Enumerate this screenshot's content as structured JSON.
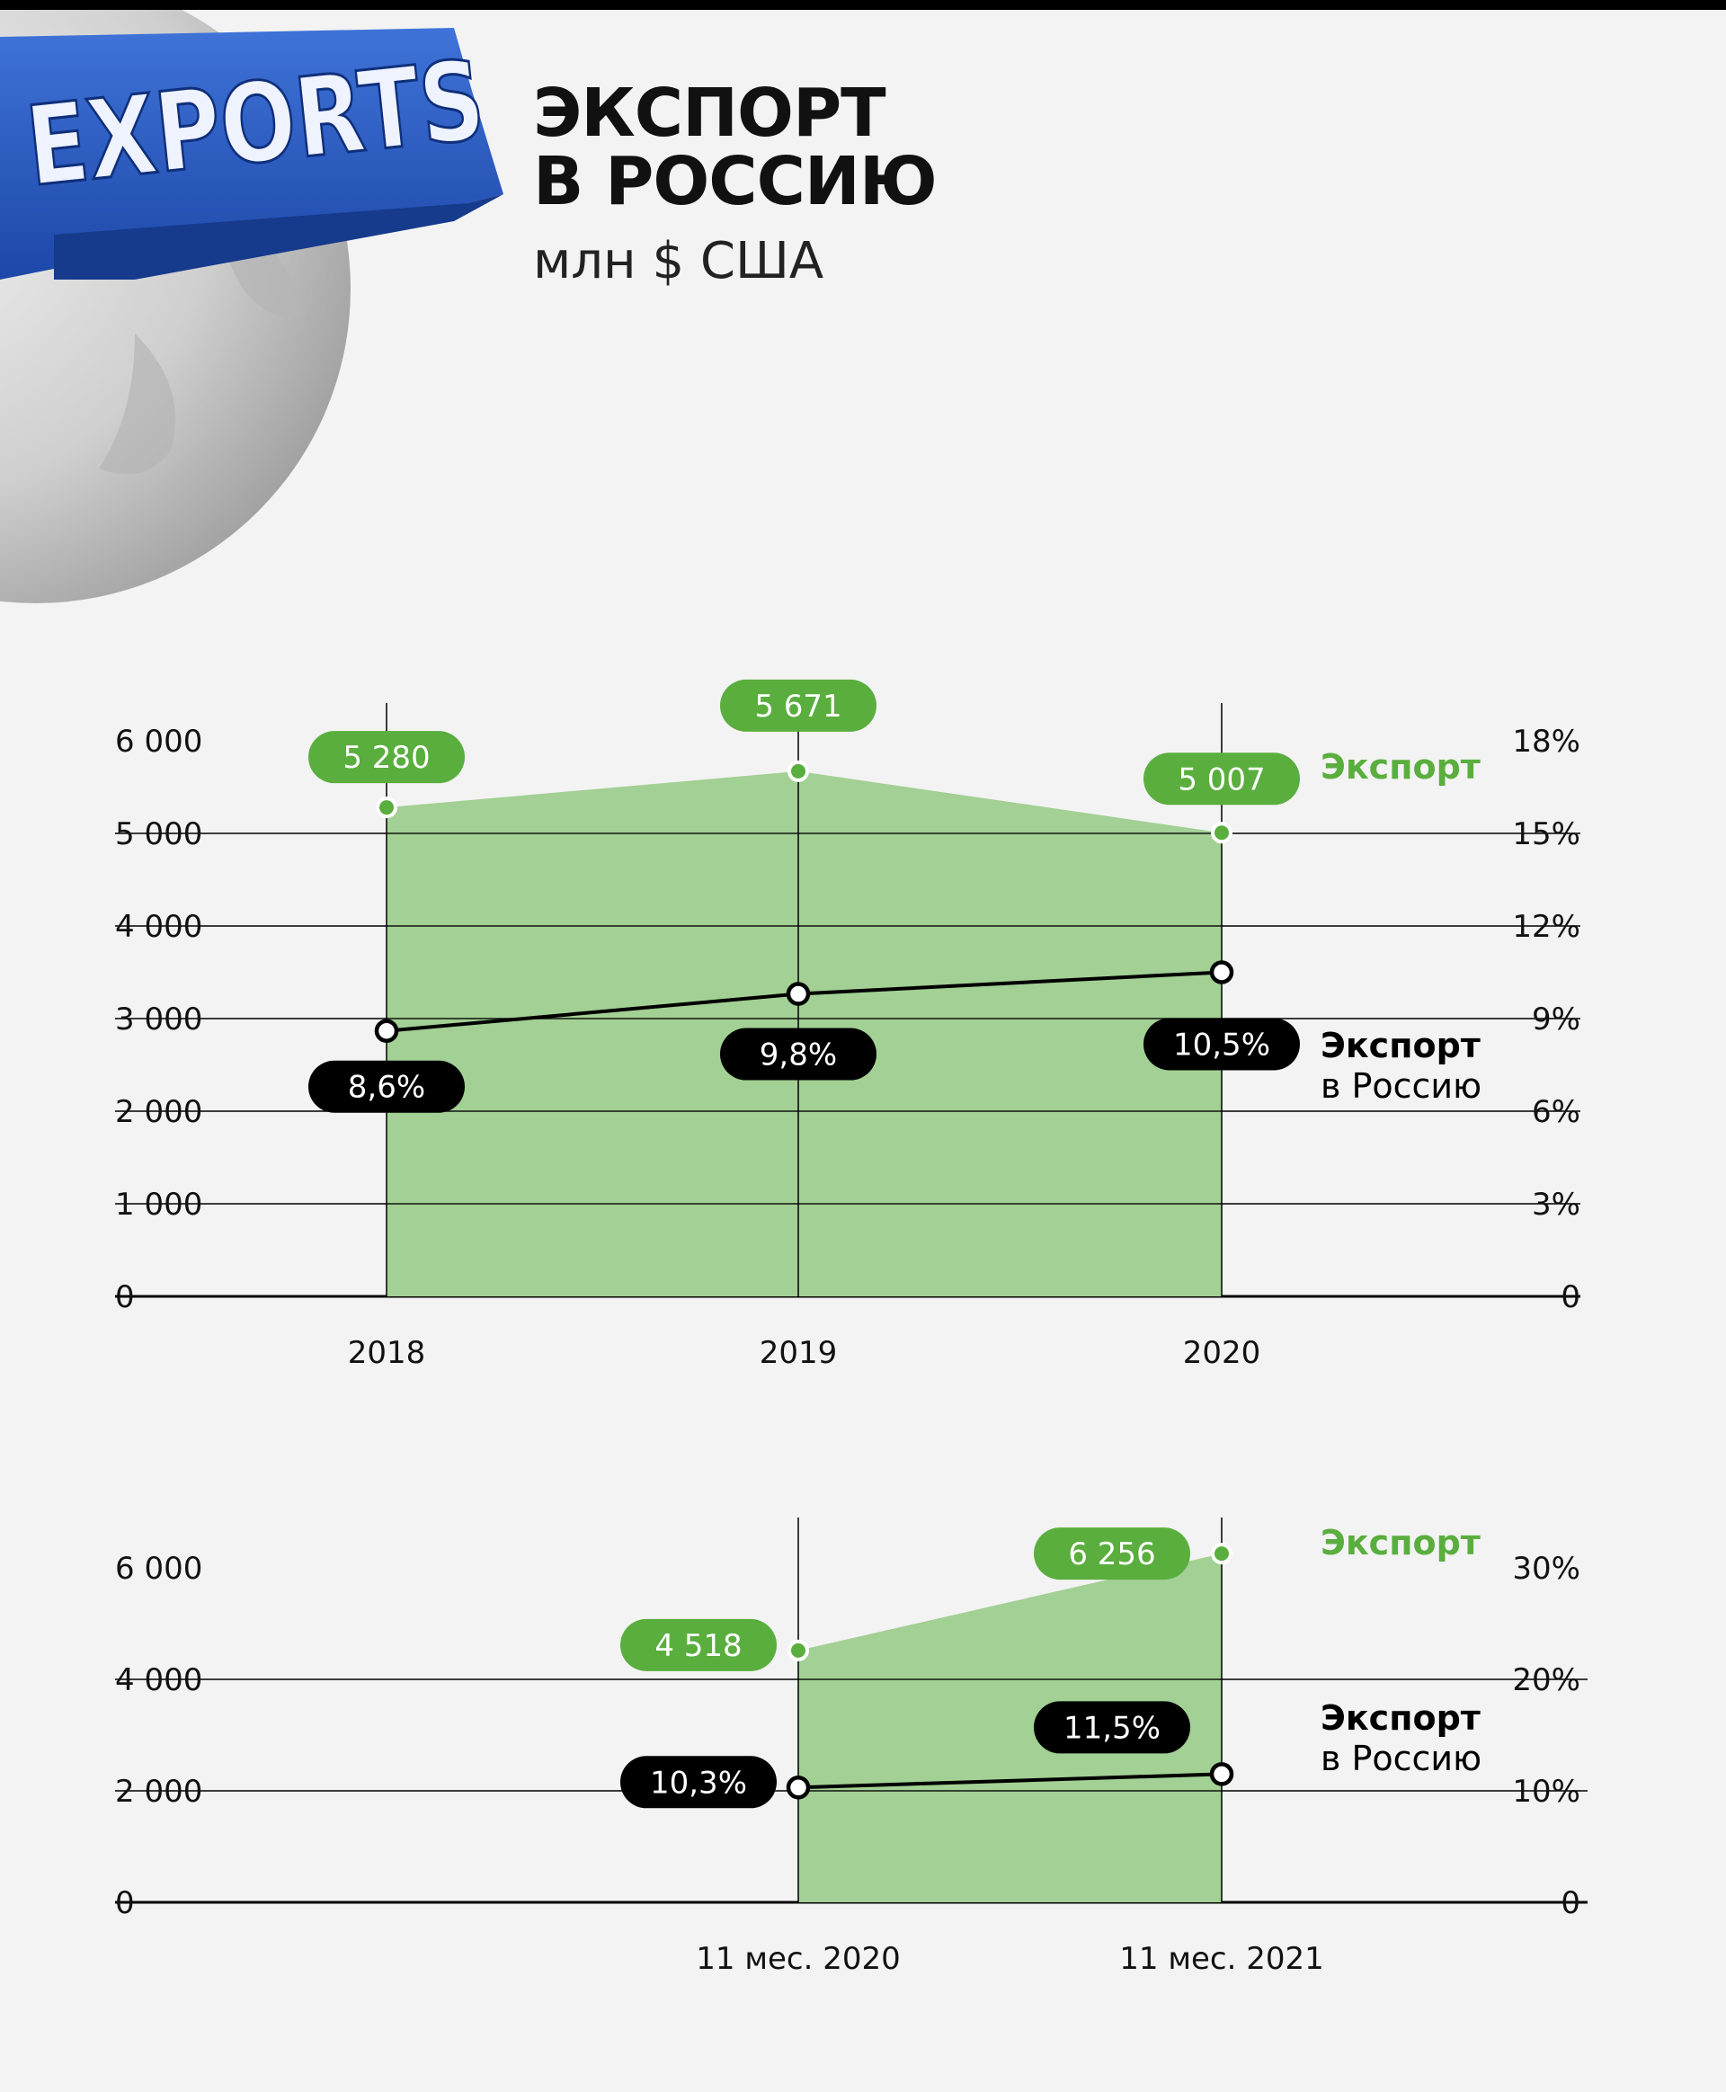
{
  "header": {
    "title_line1": "ЭКСПОРТ",
    "title_line2": "В РОССИЮ",
    "subtitle": "млн $ США"
  },
  "logo": {
    "text": "EXPORTS"
  },
  "colors": {
    "green": "#5aae3e",
    "green_fill": "#a3d094",
    "black": "#000000",
    "background": "#f3f3f3"
  },
  "chart_data": [
    {
      "type": "area",
      "categories": [
        "2018",
        "2019",
        "2020"
      ],
      "y_left_ticks": [
        "0",
        "1 000",
        "2 000",
        "3 000",
        "4 000",
        "5 000",
        "6 000"
      ],
      "y_right_ticks": [
        "0",
        "3%",
        "6%",
        "9%",
        "12%",
        "15%",
        "18%"
      ],
      "ylim_left": [
        0,
        6000
      ],
      "ylim_right": [
        0,
        18
      ],
      "series": [
        {
          "name": "Экспорт",
          "axis": "left",
          "kind": "area",
          "values": [
            5280,
            5671,
            5007
          ],
          "labels": [
            "5 280",
            "5 671",
            "5 007"
          ]
        },
        {
          "name": "Экспорт в Россию",
          "axis": "right",
          "kind": "line",
          "values": [
            8.6,
            9.8,
            10.5
          ],
          "labels": [
            "8,6%",
            "9,8%",
            "10,5%"
          ]
        }
      ],
      "legend": {
        "area_name": "Экспорт",
        "line_name_1": "Экспорт",
        "line_name_2": "в Россию"
      },
      "grid": true
    },
    {
      "type": "area",
      "categories": [
        "11 мес. 2020",
        "11 мес. 2021"
      ],
      "y_left_ticks": [
        "0",
        "2 000",
        "4 000",
        "6 000"
      ],
      "y_right_ticks": [
        "0",
        "10%",
        "20%",
        "30%"
      ],
      "ylim_left": [
        0,
        6000
      ],
      "ylim_right": [
        0,
        30
      ],
      "series": [
        {
          "name": "Экспорт",
          "axis": "left",
          "kind": "area",
          "values": [
            4518,
            6256
          ],
          "labels": [
            "4 518",
            "6 256"
          ]
        },
        {
          "name": "Экспорт в Россию",
          "axis": "right",
          "kind": "line",
          "values": [
            10.3,
            11.5
          ],
          "labels": [
            "10,3%",
            "11,5%"
          ]
        }
      ],
      "legend": {
        "area_name": "Экспорт",
        "line_name_1": "Экспорт",
        "line_name_2": "в Россию"
      },
      "grid": true
    }
  ]
}
